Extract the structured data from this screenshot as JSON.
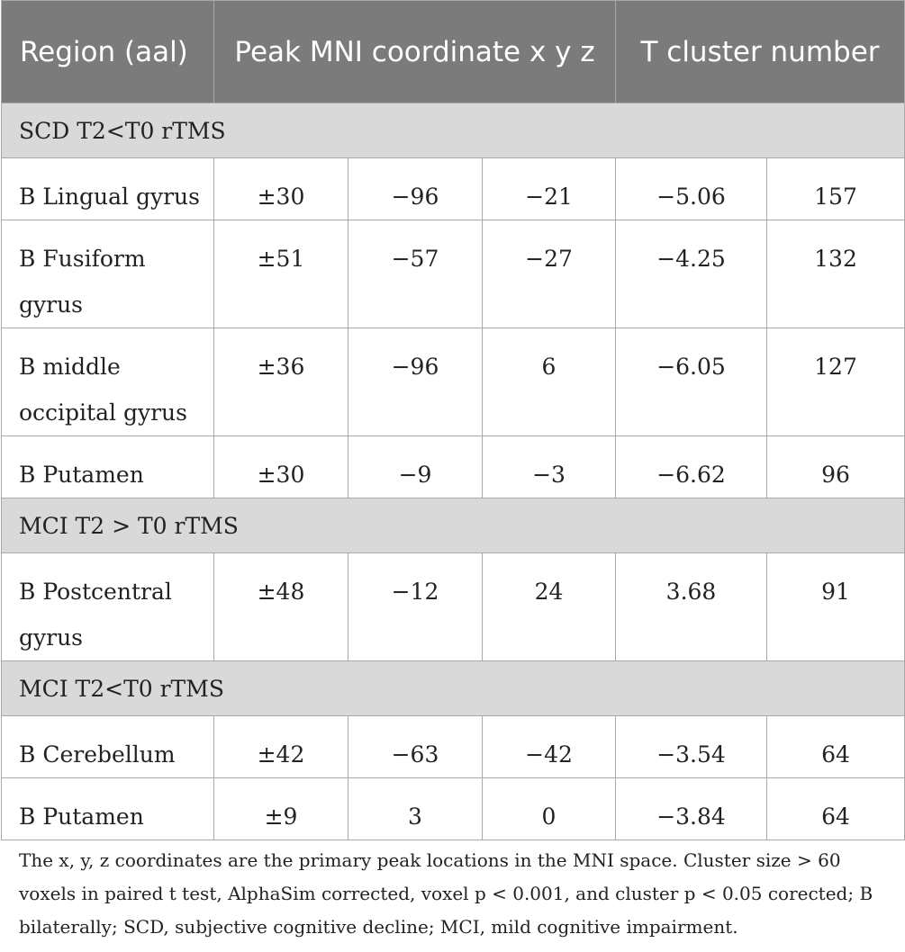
{
  "header": {
    "region": "Region (aal)",
    "peak": "Peak MNI coordinate x y z",
    "tcluster": "T cluster number"
  },
  "sections": [
    {
      "title": "SCD T2<T0 rTMS",
      "rows": [
        {
          "region": "B Lingual gyrus",
          "x": "±30",
          "y": "−96",
          "z": "−21",
          "t": "−5.06",
          "cluster": "157"
        },
        {
          "region": "B Fusiform gyrus",
          "x": "±51",
          "y": "−57",
          "z": "−27",
          "t": "−4.25",
          "cluster": "132"
        },
        {
          "region": "B middle occipital gyrus",
          "x": "±36",
          "y": "−96",
          "z": "6",
          "t": "−6.05",
          "cluster": "127"
        },
        {
          "region": "B Putamen",
          "x": "±30",
          "y": "−9",
          "z": "−3",
          "t": "−6.62",
          "cluster": "96"
        }
      ]
    },
    {
      "title": "MCI T2 > T0 rTMS",
      "rows": [
        {
          "region": "B Postcentral gyrus",
          "x": "±48",
          "y": "−12",
          "z": "24",
          "t": "3.68",
          "cluster": "91"
        }
      ]
    },
    {
      "title": "MCI T2<T0 rTMS",
      "rows": [
        {
          "region": "B Cerebellum",
          "x": "±42",
          "y": "−63",
          "z": "−42",
          "t": "−3.54",
          "cluster": "64"
        },
        {
          "region": "B Putamen",
          "x": "±9",
          "y": "3",
          "z": "0",
          "t": "−3.84",
          "cluster": "64"
        }
      ]
    }
  ],
  "footnote": "The x, y, z coordinates are the primary peak locations in the MNI space. Cluster size > 60 voxels in paired t test, AlphaSim corrected, voxel p < 0.001, and cluster p < 0.05 corected; B bilaterally; SCD, subjective cognitive decline; MCI, mild cognitive impairment."
}
